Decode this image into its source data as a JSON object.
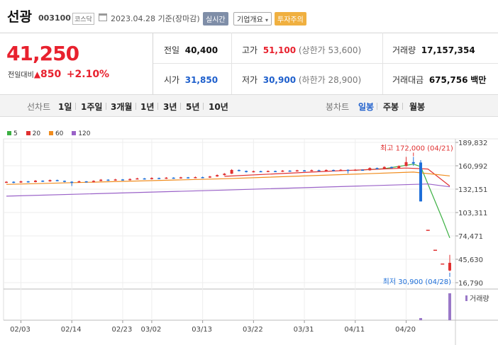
{
  "header": {
    "name": "선광",
    "code": "003100",
    "market": "코스닥",
    "date": "2023.04.28",
    "basis": "기준(장마감)",
    "live_label": "실시간",
    "company_label": "기업개요",
    "warn_label": "투자주의"
  },
  "price": {
    "current": "41,250",
    "change_label": "전일대비",
    "change_arrow": "▲",
    "change": "850",
    "change_pct": "+2.10%"
  },
  "stats": {
    "prev_label": "전일",
    "prev": "40,400",
    "high_label": "고가",
    "high": "51,100",
    "high_limit": "(상한가 53,600)",
    "volume_label": "거래량",
    "volume": "17,157,354",
    "open_label": "시가",
    "open": "31,850",
    "low_label": "저가",
    "low": "30,900",
    "low_limit": "(하한가 28,900)",
    "amount_label": "거래대금",
    "amount": "675,756",
    "amount_unit": "백만"
  },
  "periods": {
    "line_label": "선차트",
    "line_items": [
      "1일",
      "1주일",
      "3개월",
      "1년",
      "3년",
      "5년",
      "10년"
    ],
    "candle_label": "봉차트",
    "candle_items": [
      "일봉",
      "주봉",
      "월봉"
    ],
    "selected": "일봉"
  },
  "chart_data": {
    "type": "candlestick",
    "legend": [
      {
        "name": "5",
        "color": "#3cb043"
      },
      {
        "name": "20",
        "color": "#e03030"
      },
      {
        "name": "60",
        "color": "#f08c1e"
      },
      {
        "name": "120",
        "color": "#9a62c8"
      }
    ],
    "y_ticks": [
      "189,832",
      "160,992",
      "132,151",
      "103,311",
      "74,471",
      "45,630",
      "16,790"
    ],
    "y_values": [
      189832,
      160992,
      132151,
      103311,
      74471,
      45630,
      16790
    ],
    "x_ticks": [
      "02/03",
      "02/14",
      "02/23",
      "03/02",
      "03/13",
      "03/22",
      "03/31",
      "04/11",
      "04/20"
    ],
    "high_annotation": "최고 172,000 (04/21)",
    "low_annotation": "최저 30,900 (04/28)",
    "volume_label": "거래량",
    "colors": {
      "up": "#e03030",
      "down": "#1e6fd9"
    },
    "candles": [
      {
        "date": "02/01",
        "o": 140500,
        "c": 141200,
        "h": 142000,
        "l": 139800
      },
      {
        "date": "02/02",
        "o": 141200,
        "c": 140300,
        "h": 141800,
        "l": 139500
      },
      {
        "date": "02/03",
        "o": 140300,
        "c": 141800,
        "h": 142500,
        "l": 139900
      },
      {
        "date": "02/06",
        "o": 141800,
        "c": 140900,
        "h": 142300,
        "l": 140200
      },
      {
        "date": "02/07",
        "o": 140900,
        "c": 142600,
        "h": 143400,
        "l": 140500
      },
      {
        "date": "02/08",
        "o": 142600,
        "c": 141700,
        "h": 143000,
        "l": 141000
      },
      {
        "date": "02/09",
        "o": 141700,
        "c": 143300,
        "h": 144000,
        "l": 141300
      },
      {
        "date": "02/10",
        "o": 143300,
        "c": 142400,
        "h": 143900,
        "l": 141900
      },
      {
        "date": "02/13",
        "o": 142400,
        "c": 141300,
        "h": 142800,
        "l": 140600
      },
      {
        "date": "02/14",
        "o": 141300,
        "c": 140500,
        "h": 141900,
        "l": 136000
      },
      {
        "date": "02/15",
        "o": 140500,
        "c": 141800,
        "h": 142600,
        "l": 140100
      },
      {
        "date": "02/16",
        "o": 141800,
        "c": 140800,
        "h": 142100,
        "l": 140300
      },
      {
        "date": "02/17",
        "o": 140800,
        "c": 142300,
        "h": 143100,
        "l": 140400
      },
      {
        "date": "02/20",
        "o": 142300,
        "c": 143800,
        "h": 144600,
        "l": 141900
      },
      {
        "date": "02/21",
        "o": 143800,
        "c": 142900,
        "h": 144300,
        "l": 142400
      },
      {
        "date": "02/22",
        "o": 142900,
        "c": 144100,
        "h": 144900,
        "l": 142600
      },
      {
        "date": "02/23",
        "o": 144100,
        "c": 143200,
        "h": 144600,
        "l": 142700
      },
      {
        "date": "02/24",
        "o": 143200,
        "c": 144600,
        "h": 145400,
        "l": 142900
      },
      {
        "date": "02/27",
        "o": 144600,
        "c": 145400,
        "h": 146200,
        "l": 144100
      },
      {
        "date": "02/28",
        "o": 145400,
        "c": 144500,
        "h": 145900,
        "l": 144000
      },
      {
        "date": "03/02",
        "o": 144500,
        "c": 145900,
        "h": 146700,
        "l": 144100
      },
      {
        "date": "03/03",
        "o": 145900,
        "c": 145100,
        "h": 146400,
        "l": 144600
      },
      {
        "date": "03/06",
        "o": 145100,
        "c": 146300,
        "h": 147000,
        "l": 144700
      },
      {
        "date": "03/07",
        "o": 146300,
        "c": 145500,
        "h": 146800,
        "l": 145000
      },
      {
        "date": "03/08",
        "o": 145500,
        "c": 146700,
        "h": 147400,
        "l": 145100
      },
      {
        "date": "03/09",
        "o": 146700,
        "c": 146000,
        "h": 147200,
        "l": 145500
      },
      {
        "date": "03/10",
        "o": 146000,
        "c": 147000,
        "h": 147700,
        "l": 145600
      },
      {
        "date": "03/13",
        "o": 147000,
        "c": 146400,
        "h": 147600,
        "l": 145900
      },
      {
        "date": "03/14",
        "o": 146400,
        "c": 147800,
        "h": 148500,
        "l": 146000
      },
      {
        "date": "03/15",
        "o": 147800,
        "c": 149500,
        "h": 150300,
        "l": 147400
      },
      {
        "date": "03/16",
        "o": 149500,
        "c": 151200,
        "h": 152000,
        "l": 149100
      },
      {
        "date": "03/17",
        "o": 151200,
        "c": 155800,
        "h": 156800,
        "l": 150800
      },
      {
        "date": "03/20",
        "o": 155800,
        "c": 154600,
        "h": 156400,
        "l": 154100
      },
      {
        "date": "03/21",
        "o": 154600,
        "c": 153200,
        "h": 155100,
        "l": 152700
      },
      {
        "date": "03/22",
        "o": 153200,
        "c": 154300,
        "h": 155000,
        "l": 152800
      },
      {
        "date": "03/23",
        "o": 154300,
        "c": 153600,
        "h": 154900,
        "l": 153100
      },
      {
        "date": "03/24",
        "o": 153600,
        "c": 154500,
        "h": 155200,
        "l": 153100
      },
      {
        "date": "03/27",
        "o": 154500,
        "c": 153700,
        "h": 155000,
        "l": 153200
      },
      {
        "date": "03/28",
        "o": 153700,
        "c": 155000,
        "h": 155700,
        "l": 153300
      },
      {
        "date": "03/29",
        "o": 155000,
        "c": 154200,
        "h": 155500,
        "l": 153700
      },
      {
        "date": "03/30",
        "o": 154200,
        "c": 155300,
        "h": 156000,
        "l": 153800
      },
      {
        "date": "03/31",
        "o": 155300,
        "c": 154600,
        "h": 155800,
        "l": 154100
      },
      {
        "date": "04/03",
        "o": 154600,
        "c": 155600,
        "h": 156300,
        "l": 154200
      },
      {
        "date": "04/04",
        "o": 155600,
        "c": 154900,
        "h": 156100,
        "l": 154400
      },
      {
        "date": "04/05",
        "o": 154900,
        "c": 155800,
        "h": 156500,
        "l": 154500
      },
      {
        "date": "04/06",
        "o": 155800,
        "c": 155100,
        "h": 156300,
        "l": 154600
      },
      {
        "date": "04/07",
        "o": 155100,
        "c": 156000,
        "h": 156800,
        "l": 154700
      },
      {
        "date": "04/10",
        "o": 156000,
        "c": 155200,
        "h": 156500,
        "l": 151500
      },
      {
        "date": "04/11",
        "o": 155200,
        "c": 156100,
        "h": 156900,
        "l": 154800
      },
      {
        "date": "04/12",
        "o": 156100,
        "c": 155400,
        "h": 156600,
        "l": 154900
      },
      {
        "date": "04/13",
        "o": 155400,
        "c": 158200,
        "h": 159000,
        "l": 155000
      },
      {
        "date": "04/14",
        "o": 158200,
        "c": 157100,
        "h": 158800,
        "l": 156600
      },
      {
        "date": "04/17",
        "o": 157100,
        "c": 159500,
        "h": 160300,
        "l": 156700
      },
      {
        "date": "04/18",
        "o": 159500,
        "c": 158100,
        "h": 160000,
        "l": 157600
      },
      {
        "date": "04/19",
        "o": 158100,
        "c": 160600,
        "h": 161500,
        "l": 157700
      },
      {
        "date": "04/20",
        "o": 160600,
        "c": 165500,
        "h": 172000,
        "l": 160200
      },
      {
        "date": "04/21",
        "o": 165500,
        "c": 163800,
        "h": 172000,
        "l": 160900
      },
      {
        "date": "04/24",
        "o": 165000,
        "c": 117000,
        "h": 168000,
        "l": 117000
      },
      {
        "date": "04/25",
        "o": 82000,
        "c": 82000,
        "h": 82000,
        "l": 82000
      },
      {
        "date": "04/26",
        "o": 57400,
        "c": 57400,
        "h": 57400,
        "l": 57400
      },
      {
        "date": "04/27",
        "o": 40400,
        "c": 40400,
        "h": 40400,
        "l": 40400
      },
      {
        "date": "04/28",
        "o": 31850,
        "c": 41250,
        "h": 51100,
        "l": 30900
      }
    ],
    "ma": {
      "5": [
        {
          "i": 48,
          "v": 155400
        },
        {
          "i": 52,
          "v": 157400
        },
        {
          "i": 56,
          "v": 163000
        },
        {
          "i": 57,
          "v": 160000
        },
        {
          "i": 60,
          "v": 95000
        },
        {
          "i": 61,
          "v": 72000
        }
      ],
      "20": [
        {
          "i": 30,
          "v": 148000
        },
        {
          "i": 45,
          "v": 154500
        },
        {
          "i": 55,
          "v": 158200
        },
        {
          "i": 58,
          "v": 157000
        },
        {
          "i": 61,
          "v": 136000
        }
      ],
      "60": [
        {
          "i": 0,
          "v": 138000
        },
        {
          "i": 30,
          "v": 145000
        },
        {
          "i": 56,
          "v": 153200
        },
        {
          "i": 61,
          "v": 148500
        }
      ],
      "120": [
        {
          "i": 0,
          "v": 123500
        },
        {
          "i": 30,
          "v": 131000
        },
        {
          "i": 58,
          "v": 138500
        },
        {
          "i": 61,
          "v": 135000
        }
      ]
    },
    "volume": [
      {
        "i": 57,
        "v": 8
      },
      {
        "i": 61,
        "v": 100
      }
    ]
  }
}
